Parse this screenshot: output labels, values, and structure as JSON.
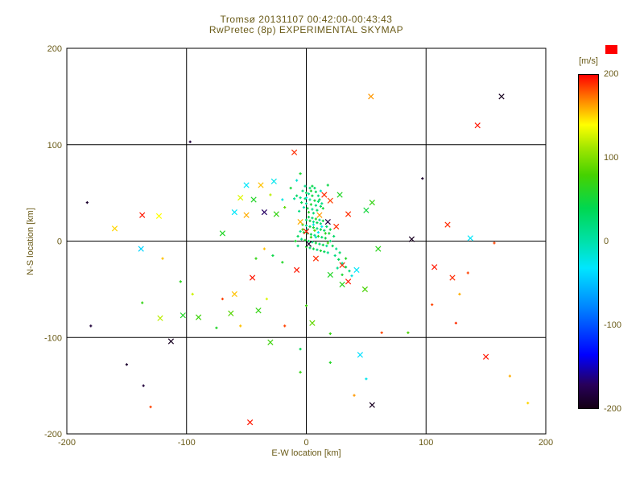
{
  "title": {
    "line1": "Tromsø 20131107 00:42:00-00:43:43",
    "line2": "RwPretec (8p) EXPERIMENTAL SKYMAP"
  },
  "colors": {
    "background": "#ffffff",
    "text": "#6a5b18",
    "axis": "#000000",
    "swatch_red": "#ff0000"
  },
  "chart_data": {
    "type": "scatter",
    "title": "Tromsø 20131107 00:42:00-00:43:43",
    "subtitle": "RwPretec (8p) EXPERIMENTAL SKYMAP",
    "xlabel": "E-W location [km]",
    "ylabel": "N-S location [km]",
    "xlim": [
      -200,
      200
    ],
    "ylim": [
      -200,
      200
    ],
    "xticks": [
      -200,
      -100,
      0,
      100,
      200
    ],
    "yticks": [
      -200,
      -100,
      0,
      100,
      200
    ],
    "grid": true,
    "colorbar": {
      "label": "[m/s]",
      "min": -200,
      "max": 200,
      "ticks": [
        200,
        100,
        0,
        -100,
        -200
      ]
    },
    "colormap": [
      [
        -200,
        "#140014"
      ],
      [
        -172,
        "#28005a"
      ],
      [
        -136,
        "#0000ff"
      ],
      [
        -80,
        "#0082ff"
      ],
      [
        -32,
        "#00e6ff"
      ],
      [
        0,
        "#00e1aa"
      ],
      [
        40,
        "#00d750"
      ],
      [
        80,
        "#46d200"
      ],
      [
        112,
        "#a0e600"
      ],
      [
        140,
        "#ffff00"
      ],
      [
        168,
        "#ff8c00"
      ],
      [
        200,
        "#ff0000"
      ]
    ],
    "points": [
      [
        54,
        150,
        165,
        "x"
      ],
      [
        163,
        150,
        -195,
        "x"
      ],
      [
        143,
        120,
        195,
        "x"
      ],
      [
        -97,
        103,
        -185
      ],
      [
        -10,
        92,
        190,
        "x"
      ],
      [
        97,
        65,
        -190
      ],
      [
        -5,
        70,
        55
      ],
      [
        -137,
        27,
        195,
        "x"
      ],
      [
        -123,
        26,
        140,
        "x"
      ],
      [
        -160,
        13,
        150,
        "x"
      ],
      [
        118,
        17,
        190,
        "x"
      ],
      [
        137,
        3,
        -30,
        "x"
      ],
      [
        88,
        2,
        -195,
        "x"
      ],
      [
        157,
        -2,
        185
      ],
      [
        -120,
        -18,
        155
      ],
      [
        107,
        -27,
        195,
        "x"
      ],
      [
        122,
        -38,
        190,
        "x"
      ],
      [
        128,
        -55,
        160
      ],
      [
        105,
        -66,
        185
      ],
      [
        135,
        -33,
        185
      ],
      [
        125,
        -85,
        190
      ],
      [
        150,
        -120,
        195,
        "x"
      ],
      [
        170,
        -140,
        160
      ],
      [
        185,
        -168,
        150
      ],
      [
        -137,
        -64,
        70
      ],
      [
        -122,
        -80,
        120,
        "x"
      ],
      [
        -103,
        -77,
        60,
        "x"
      ],
      [
        -90,
        -79,
        75,
        "x"
      ],
      [
        -95,
        -55,
        125
      ],
      [
        -105,
        -42,
        65
      ],
      [
        -70,
        -60,
        185
      ],
      [
        49,
        -50,
        80,
        "x"
      ],
      [
        35,
        -42,
        195,
        "x"
      ],
      [
        -45,
        -38,
        195,
        "x"
      ],
      [
        -60,
        -55,
        155,
        "x"
      ],
      [
        -63,
        -75,
        85,
        "x"
      ],
      [
        -40,
        -72,
        70,
        "x"
      ],
      [
        -33,
        -60,
        130
      ],
      [
        0,
        -67,
        75
      ],
      [
        5,
        -85,
        90,
        "x"
      ],
      [
        -18,
        -88,
        185
      ],
      [
        -55,
        -88,
        155
      ],
      [
        -75,
        -90,
        60
      ],
      [
        20,
        -96,
        70
      ],
      [
        63,
        -95,
        185
      ],
      [
        85,
        -95,
        80
      ],
      [
        -30,
        -105,
        75,
        "x"
      ],
      [
        -113,
        -104,
        -195,
        "x"
      ],
      [
        45,
        -118,
        -35,
        "x"
      ],
      [
        20,
        -126,
        60
      ],
      [
        -5,
        -136,
        70
      ],
      [
        -5,
        -112,
        40
      ],
      [
        40,
        -160,
        165
      ],
      [
        55,
        -170,
        -195,
        "x"
      ],
      [
        -47,
        -188,
        195,
        "x"
      ],
      [
        -130,
        -172,
        185
      ],
      [
        -136,
        -150,
        -185
      ],
      [
        -150,
        -128,
        -190
      ],
      [
        -183,
        40,
        -190
      ],
      [
        -180,
        -88,
        -185
      ],
      [
        -138,
        -8,
        -40,
        "x"
      ],
      [
        50,
        -143,
        -25
      ],
      [
        -50,
        58,
        -30,
        "x"
      ],
      [
        -38,
        58,
        155,
        "x"
      ],
      [
        -27,
        62,
        -25,
        "x"
      ],
      [
        -55,
        45,
        130,
        "x"
      ],
      [
        -44,
        43,
        60,
        "x"
      ],
      [
        -60,
        30,
        -30,
        "x"
      ],
      [
        -50,
        27,
        160,
        "x"
      ],
      [
        -35,
        30,
        -170,
        "x"
      ],
      [
        -25,
        28,
        70,
        "x"
      ],
      [
        -20,
        43,
        -20
      ],
      [
        -13,
        55,
        50
      ],
      [
        -8,
        63,
        -15
      ],
      [
        -18,
        35,
        90
      ],
      [
        -30,
        48,
        120
      ],
      [
        -70,
        8,
        60,
        "x"
      ],
      [
        55,
        40,
        70,
        "x"
      ],
      [
        50,
        32,
        50,
        "x"
      ],
      [
        60,
        -8,
        65,
        "x"
      ],
      [
        35,
        28,
        190,
        "x"
      ],
      [
        20,
        42,
        185,
        "x"
      ],
      [
        28,
        48,
        60,
        "x"
      ],
      [
        18,
        58,
        45
      ],
      [
        30,
        -25,
        190,
        "x"
      ],
      [
        42,
        -30,
        -30,
        "x"
      ],
      [
        20,
        -35,
        60,
        "x"
      ],
      [
        30,
        -45,
        65,
        "x"
      ],
      [
        -8,
        -30,
        195,
        "x"
      ],
      [
        -20,
        -22,
        60
      ],
      [
        -28,
        -15,
        45
      ],
      [
        -35,
        -8,
        155
      ],
      [
        -42,
        -18,
        70
      ],
      [
        -3,
        52,
        20
      ],
      [
        0,
        50,
        35
      ],
      [
        2,
        49,
        10
      ],
      [
        5,
        47,
        45
      ],
      [
        -5,
        45,
        15
      ],
      [
        -1,
        44,
        30
      ],
      [
        3,
        43,
        5
      ],
      [
        7,
        42,
        50
      ],
      [
        10,
        41,
        25
      ],
      [
        -4,
        40,
        40
      ],
      [
        0,
        39,
        10
      ],
      [
        4,
        38,
        55
      ],
      [
        8,
        37,
        20
      ],
      [
        12,
        36,
        35
      ],
      [
        -2,
        35,
        0
      ],
      [
        1,
        34,
        45
      ],
      [
        5,
        33,
        15
      ],
      [
        9,
        32,
        30
      ],
      [
        -6,
        31,
        20
      ],
      [
        2,
        30,
        60
      ],
      [
        6,
        29,
        25
      ],
      [
        11,
        43,
        40
      ],
      [
        13,
        39,
        15
      ],
      [
        -8,
        47,
        30
      ],
      [
        -10,
        44,
        10
      ],
      [
        14,
        34,
        50
      ],
      [
        3,
        55,
        25
      ],
      [
        8,
        51,
        35
      ],
      [
        -1,
        57,
        15
      ],
      [
        5,
        57,
        45
      ],
      [
        10,
        47,
        20
      ],
      [
        12,
        52,
        -10
      ],
      [
        7,
        55,
        30
      ],
      [
        0,
        45,
        -15
      ],
      [
        4,
        52,
        55
      ],
      [
        15,
        48,
        190,
        "x"
      ],
      [
        11,
        27,
        165,
        "x"
      ],
      [
        0,
        22,
        30
      ],
      [
        3,
        21,
        50
      ],
      [
        6,
        20,
        15
      ],
      [
        9,
        19,
        40
      ],
      [
        12,
        18,
        25
      ],
      [
        -3,
        17,
        60
      ],
      [
        0,
        16,
        10
      ],
      [
        3,
        15,
        35
      ],
      [
        6,
        14,
        55
      ],
      [
        9,
        13,
        20
      ],
      [
        12,
        12,
        45
      ],
      [
        15,
        11,
        30
      ],
      [
        -5,
        10,
        15
      ],
      [
        -2,
        9,
        50
      ],
      [
        1,
        8,
        25
      ],
      [
        4,
        7,
        40
      ],
      [
        7,
        6,
        10
      ],
      [
        10,
        5,
        60
      ],
      [
        13,
        4,
        30
      ],
      [
        16,
        3,
        45
      ],
      [
        -4,
        2,
        20
      ],
      [
        -1,
        1,
        55
      ],
      [
        2,
        0,
        35
      ],
      [
        5,
        -1,
        15
      ],
      [
        8,
        -2,
        50
      ],
      [
        11,
        -3,
        25
      ],
      [
        14,
        -4,
        40
      ],
      [
        17,
        -5,
        10
      ],
      [
        0,
        -6,
        60
      ],
      [
        3,
        -7,
        30
      ],
      [
        6,
        -8,
        45
      ],
      [
        9,
        -9,
        20
      ],
      [
        12,
        -10,
        55
      ],
      [
        15,
        -11,
        35
      ],
      [
        18,
        -12,
        15
      ],
      [
        2,
        25,
        40
      ],
      [
        5,
        24,
        25
      ],
      [
        8,
        23,
        60
      ],
      [
        11,
        22,
        10
      ],
      [
        14,
        21,
        45
      ],
      [
        17,
        15,
        30
      ],
      [
        19,
        8,
        50
      ],
      [
        20,
        0,
        20
      ],
      [
        22,
        -5,
        40
      ],
      [
        25,
        -8,
        15
      ],
      [
        -7,
        5,
        35
      ],
      [
        -9,
        0,
        55
      ],
      [
        -7,
        -5,
        25
      ],
      [
        20,
        12,
        45
      ],
      [
        23,
        5,
        30
      ],
      [
        6,
        17,
        -20
      ],
      [
        10,
        9,
        -25
      ],
      [
        1,
        12,
        -15
      ],
      [
        13,
        15,
        -30
      ],
      [
        8,
        4,
        -10
      ],
      [
        4,
        4,
        70
      ],
      [
        16,
        8,
        65
      ],
      [
        18,
        -2,
        75
      ],
      [
        -3,
        12,
        80
      ],
      [
        7,
        11,
        90
      ],
      [
        0,
        10,
        195,
        "x"
      ],
      [
        -5,
        20,
        160,
        "x"
      ],
      [
        2,
        -3,
        -190,
        "x"
      ],
      [
        25,
        15,
        190,
        "x"
      ],
      [
        8,
        -18,
        190,
        "x"
      ],
      [
        18,
        20,
        -180,
        "x"
      ],
      [
        24,
        -15,
        20
      ],
      [
        27,
        -19,
        35
      ],
      [
        30,
        -23,
        10
      ],
      [
        33,
        -27,
        45
      ],
      [
        36,
        -31,
        25
      ],
      [
        30,
        -35,
        55
      ],
      [
        26,
        -28,
        15
      ],
      [
        38,
        -36,
        -20
      ],
      [
        33,
        -18,
        60
      ],
      [
        28,
        -12,
        30
      ]
    ]
  }
}
